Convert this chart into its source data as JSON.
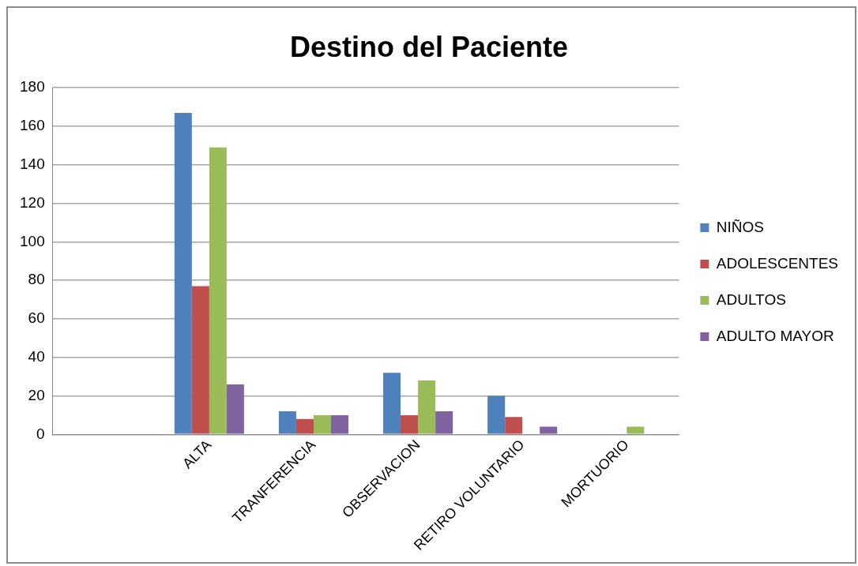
{
  "chart_data": {
    "type": "bar",
    "title": "Destino del Paciente",
    "categories": [
      null,
      "ALTA",
      "TRANFERENCIA",
      "OBSERVACION",
      "RETIRO VOLUNTARIO",
      "MORTUORIO"
    ],
    "series": [
      {
        "name": "NIÑOS",
        "color": "#4f81bd",
        "values": [
          null,
          167,
          12,
          32,
          20,
          0
        ]
      },
      {
        "name": "ADOLESCENTES",
        "color": "#c0504d",
        "values": [
          null,
          77,
          8,
          10,
          9,
          0
        ]
      },
      {
        "name": "ADULTOS",
        "color": "#9bbb59",
        "values": [
          null,
          149,
          10,
          28,
          0,
          4
        ]
      },
      {
        "name": "ADULTO MAYOR",
        "color": "#8064a2",
        "values": [
          null,
          26,
          10,
          12,
          4,
          0
        ]
      }
    ],
    "ylim": [
      0,
      180
    ],
    "yticks": [
      0,
      20,
      40,
      60,
      80,
      100,
      120,
      140,
      160,
      180
    ],
    "grid": "y",
    "legend": "right"
  }
}
